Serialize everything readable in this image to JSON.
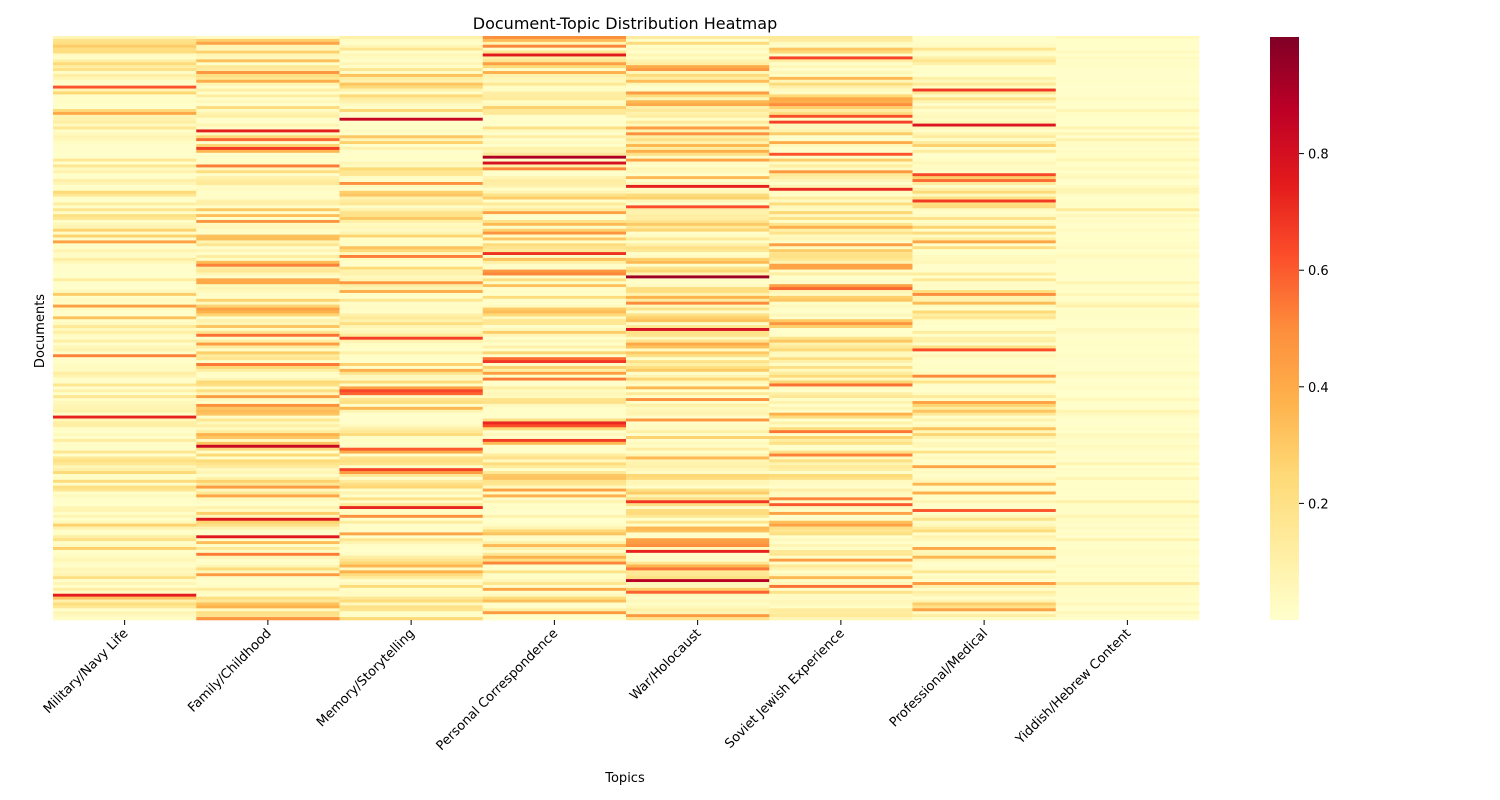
{
  "chart_data": {
    "type": "heatmap",
    "title": "Document-Topic Distribution Heatmap",
    "xlabel": "Topics",
    "ylabel": "Documents",
    "categories": [
      "Military/Navy Life",
      "Family/Childhood",
      "Memory/Storytelling",
      "Personal Correspondence",
      "War/Holocaust",
      "Soviet Jewish Experience",
      "Professional/Medical",
      "Yiddish/Hebrew Content"
    ],
    "colormap": "YlOrRd",
    "value_range": [
      0,
      1
    ],
    "colorbar_ticks": [
      0.2,
      0.4,
      0.6,
      0.8
    ],
    "colorbar_tick_labels": [
      "0.2",
      "0.4",
      "0.6",
      "0.8"
    ],
    "n_documents": 200,
    "grid": false
  }
}
